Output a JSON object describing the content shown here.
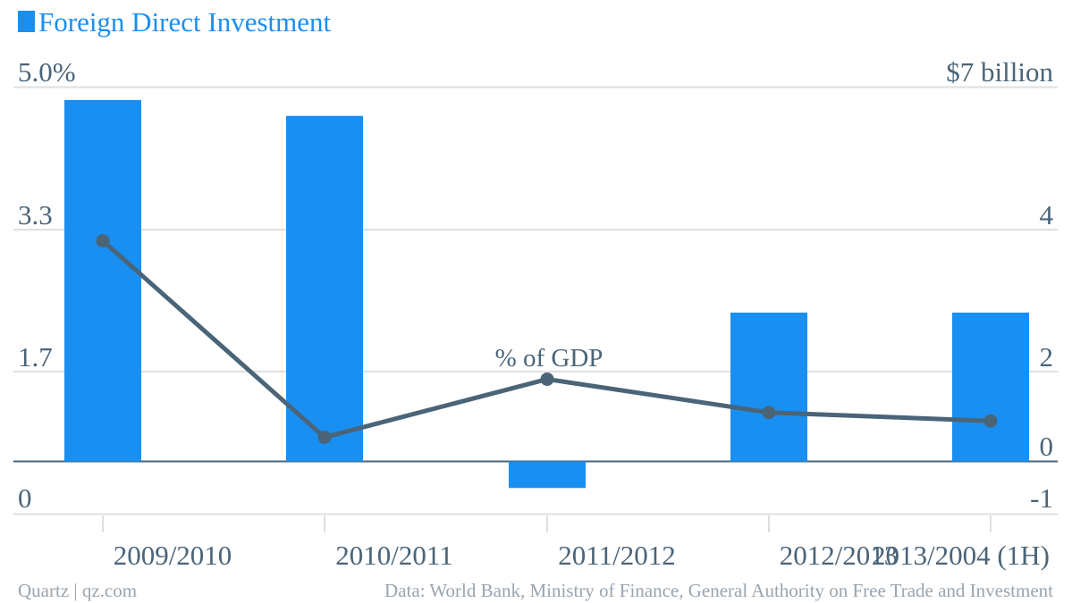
{
  "chart_data": {
    "type": "bar+line",
    "title": "",
    "legend": {
      "label": "Foreign Direct Investment",
      "color": "#1a8ff2",
      "placement": "top-left"
    },
    "categories": [
      "2009/2010",
      "2010/2011",
      "2011/2012",
      "2012/2013",
      "2013/2004 (1H)"
    ],
    "series": [
      {
        "name": "Foreign Direct Investment",
        "type": "bar",
        "axis": "right",
        "unit": "$ billion",
        "color": "#1a8ff2",
        "values": [
          6.8,
          6.5,
          -0.5,
          2.8,
          2.8
        ]
      },
      {
        "name": "% of GDP",
        "type": "line",
        "axis": "left",
        "unit": "%",
        "color": "#4a6478",
        "values": [
          3.2,
          0.9,
          1.58,
          1.19,
          1.09
        ]
      }
    ],
    "left_axis": {
      "ticks": [
        "5.0%",
        "3.3",
        "1.7",
        "0"
      ],
      "ylim": [
        0,
        5.0
      ]
    },
    "right_axis": {
      "ticks": [
        "$7 billion",
        "4",
        "2",
        "0",
        "-1"
      ],
      "ylim": [
        -1,
        7
      ]
    },
    "annotations": [
      {
        "text": "% of GDP"
      }
    ],
    "grid": true
  },
  "footer": {
    "source_left": "Quartz | qz.com",
    "source_right": "Data: World Bank, Ministry of Finance, General Authority on Free Trade and Investment"
  }
}
